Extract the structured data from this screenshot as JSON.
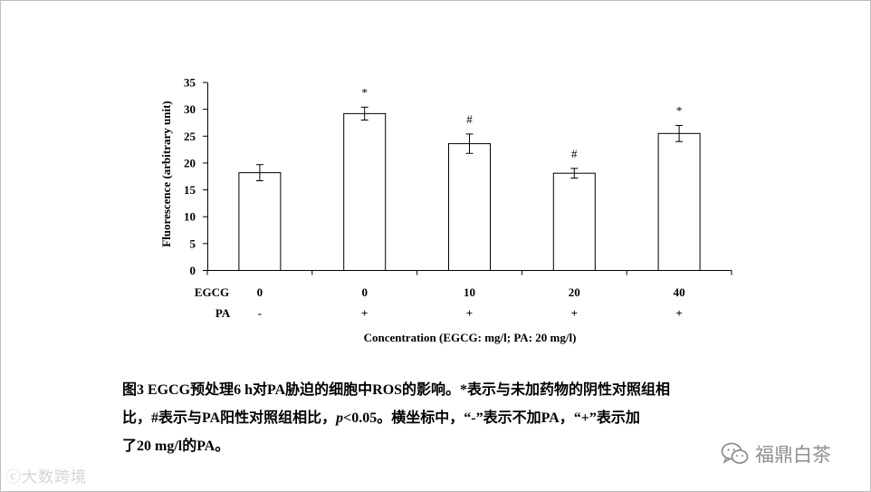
{
  "chart_data": {
    "type": "bar",
    "categories": [
      "0",
      "0",
      "10",
      "20",
      "40"
    ],
    "values": [
      18.2,
      29.2,
      23.6,
      18.1,
      25.5
    ],
    "errors": [
      1.5,
      1.2,
      1.8,
      0.9,
      1.5
    ],
    "annotations": [
      "",
      "*",
      "#",
      "#",
      "*"
    ],
    "row_labels": {
      "egcg": "EGCG",
      "pa": "PA"
    },
    "egcg_values": [
      "0",
      "0",
      "10",
      "20",
      "40"
    ],
    "pa_values": [
      "-",
      "+",
      "+",
      "+",
      "+"
    ],
    "ylabel": "Fluorescence (arbitrary unit)",
    "xlabel": "Concentration (EGCG: mg/l; PA: 20 mg/l)",
    "ylim": [
      0,
      35
    ],
    "yticks": [
      0,
      5,
      10,
      15,
      20,
      25,
      30,
      35
    ],
    "bar_color": "#ffffff",
    "edge_color": "#000000"
  },
  "caption": {
    "line1": "图3 EGCG预处理6 h对PA胁迫的细胞中ROS的影响。*表示与未加药物的阴性对照组相",
    "line2_a": "比，#表示与PA阳性对照组相比，",
    "line2_p": "p",
    "line2_b": "<0.05。横坐标中，“-”表示不加PA，“+”表示加",
    "line3": "了20 mg/l的PA。"
  },
  "watermarks": {
    "left": "ⓒ大数跨境",
    "right": "福鼎白茶",
    "right_icon": "wechat-icon"
  }
}
